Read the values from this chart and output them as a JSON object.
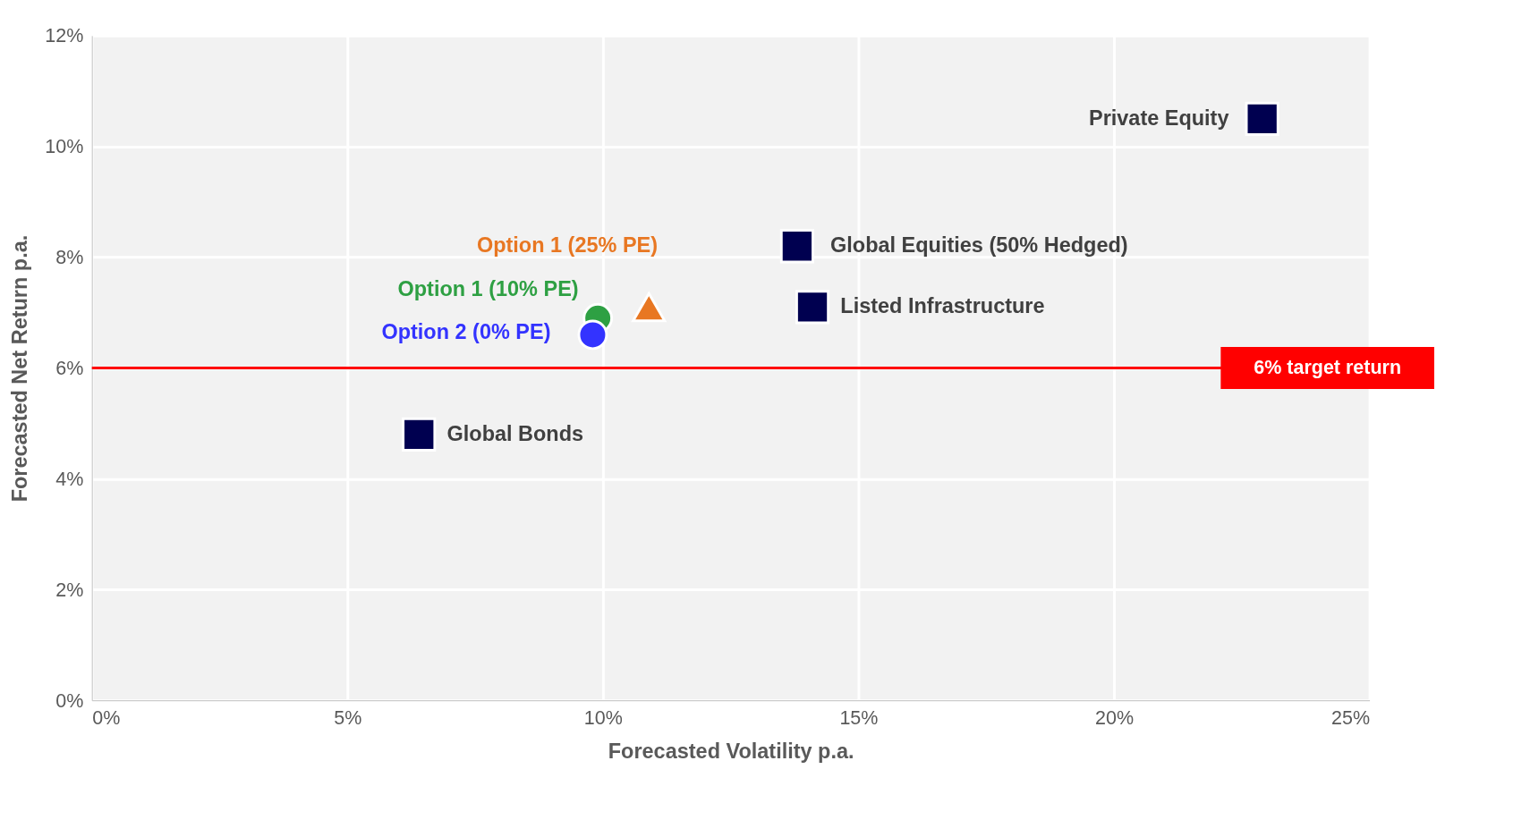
{
  "chart_data": {
    "type": "scatter",
    "xlabel": "Forecasted Volatility p.a.",
    "ylabel": "Forecasted Net Return p.a.",
    "xlim": [
      0,
      25
    ],
    "ylim": [
      0,
      12
    ],
    "xticks": [
      {
        "value": 0,
        "label": "0%"
      },
      {
        "value": 5,
        "label": "5%"
      },
      {
        "value": 10,
        "label": "10%"
      },
      {
        "value": 15,
        "label": "15%"
      },
      {
        "value": 20,
        "label": "20%"
      },
      {
        "value": 25,
        "label": "25%"
      }
    ],
    "yticks": [
      {
        "value": 0,
        "label": "0%"
      },
      {
        "value": 2,
        "label": "2%"
      },
      {
        "value": 4,
        "label": "4%"
      },
      {
        "value": 6,
        "label": "6%"
      },
      {
        "value": 8,
        "label": "8%"
      },
      {
        "value": 10,
        "label": "10%"
      },
      {
        "value": 12,
        "label": "12%"
      }
    ],
    "grid": true,
    "legend": false,
    "series": [
      {
        "name": "Private Equity",
        "color": "#000050",
        "marker": "square",
        "x": [
          22.9
        ],
        "values": [
          10.5
        ]
      },
      {
        "name": "Global Equities (50% Hedged)",
        "color": "#000050",
        "marker": "square",
        "x": [
          13.8
        ],
        "values": [
          8.2
        ]
      },
      {
        "name": "Listed Infrastructure",
        "color": "#000050",
        "marker": "square",
        "x": [
          14.1
        ],
        "values": [
          7.1
        ]
      },
      {
        "name": "Global Bonds",
        "color": "#000050",
        "marker": "square",
        "x": [
          6.4
        ],
        "values": [
          4.8
        ]
      },
      {
        "name": "Option 1 (25% PE)",
        "color": "#e87722",
        "marker": "triangle",
        "x": [
          10.9
        ],
        "values": [
          7.1
        ]
      },
      {
        "name": "Option 1 (10% PE)",
        "color": "#2ea043",
        "marker": "circle",
        "x": [
          9.9
        ],
        "values": [
          6.9
        ]
      },
      {
        "name": "Option 2 (0% PE)",
        "color": "#3333ff",
        "marker": "circle",
        "x": [
          9.8
        ],
        "values": [
          6.6
        ]
      }
    ],
    "ref_lines": [
      {
        "axis": "y",
        "value": 6,
        "label": "6% target return",
        "color": "#ff0000"
      }
    ]
  }
}
